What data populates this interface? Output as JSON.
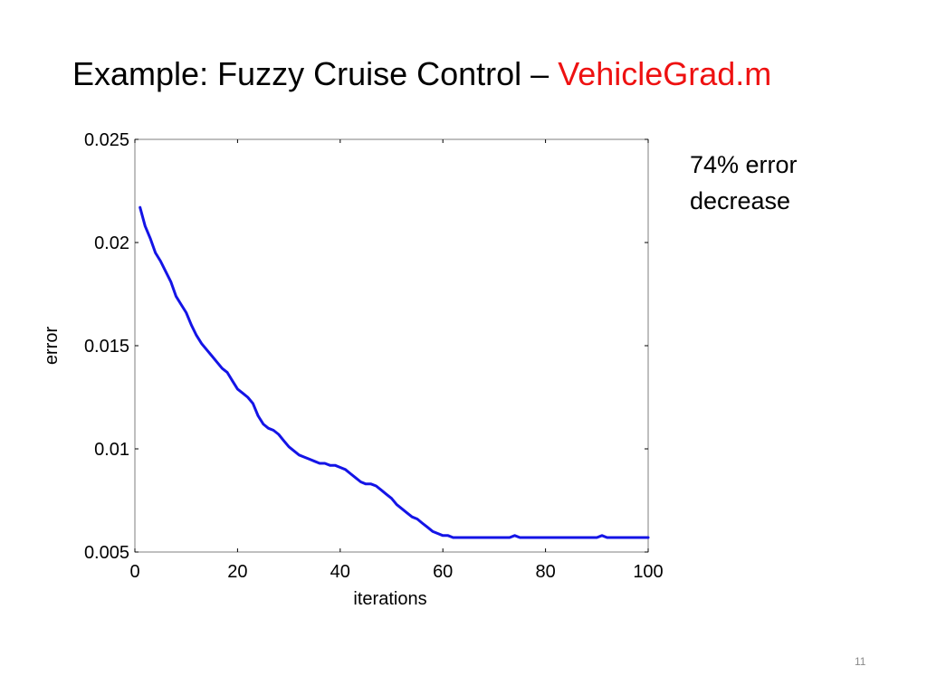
{
  "slide": {
    "title_main": "Example: Fuzzy Cruise Control – ",
    "title_accent": "VehicleGrad.m",
    "accent_color": "#ee1111",
    "annotation_line1": "74% error",
    "annotation_line2": "decrease",
    "page_number": "11"
  },
  "chart_data": {
    "type": "line",
    "xlabel": "iterations",
    "ylabel": "error",
    "xlim": [
      0,
      100
    ],
    "ylim": [
      0.005,
      0.025
    ],
    "xticks": [
      0,
      20,
      40,
      60,
      80,
      100
    ],
    "xtick_labels": [
      "0",
      "20",
      "40",
      "60",
      "80",
      "100"
    ],
    "yticks": [
      0.005,
      0.01,
      0.015,
      0.02,
      0.025
    ],
    "ytick_labels": [
      "0.005",
      "0.01",
      "0.015",
      "0.02",
      "0.025"
    ],
    "grid": false,
    "line_color": "#1414e6",
    "series": [
      {
        "x": [
          1,
          2,
          3,
          4,
          5,
          6,
          7,
          8,
          9,
          10,
          11,
          12,
          13,
          14,
          15,
          16,
          17,
          18,
          19,
          20,
          21,
          22,
          23,
          24,
          25,
          26,
          27,
          28,
          29,
          30,
          31,
          32,
          33,
          34,
          35,
          36,
          37,
          38,
          39,
          40,
          41,
          42,
          43,
          44,
          45,
          46,
          47,
          48,
          49,
          50,
          51,
          52,
          53,
          54,
          55,
          56,
          57,
          58,
          59,
          60,
          61,
          62,
          63,
          64,
          65,
          66,
          67,
          68,
          69,
          70,
          71,
          72,
          73,
          74,
          75,
          76,
          77,
          78,
          79,
          80,
          81,
          82,
          83,
          84,
          85,
          86,
          87,
          88,
          89,
          90,
          91,
          92,
          93,
          94,
          95,
          96,
          97,
          98,
          99,
          100
        ],
        "y": [
          0.0217,
          0.0208,
          0.0202,
          0.0195,
          0.0191,
          0.0186,
          0.0181,
          0.0174,
          0.017,
          0.0166,
          0.016,
          0.0155,
          0.0151,
          0.0148,
          0.0145,
          0.0142,
          0.0139,
          0.0137,
          0.0133,
          0.0129,
          0.0127,
          0.0125,
          0.0122,
          0.0116,
          0.0112,
          0.011,
          0.0109,
          0.0107,
          0.0104,
          0.0101,
          0.0099,
          0.0097,
          0.0096,
          0.0095,
          0.0094,
          0.0093,
          0.0093,
          0.0092,
          0.0092,
          0.0091,
          0.009,
          0.0088,
          0.0086,
          0.0084,
          0.0083,
          0.0083,
          0.0082,
          0.008,
          0.0078,
          0.0076,
          0.0073,
          0.0071,
          0.0069,
          0.0067,
          0.0066,
          0.0064,
          0.0062,
          0.006,
          0.0059,
          0.0058,
          0.0058,
          0.0057,
          0.0057,
          0.0057,
          0.0057,
          0.0057,
          0.0057,
          0.0057,
          0.0057,
          0.0057,
          0.0057,
          0.0057,
          0.0057,
          0.0058,
          0.0057,
          0.0057,
          0.0057,
          0.0057,
          0.0057,
          0.0057,
          0.0057,
          0.0057,
          0.0057,
          0.0057,
          0.0057,
          0.0057,
          0.0057,
          0.0057,
          0.0057,
          0.0057,
          0.0058,
          0.0057,
          0.0057,
          0.0057,
          0.0057,
          0.0057,
          0.0057,
          0.0057,
          0.0057,
          0.0057
        ]
      }
    ]
  }
}
